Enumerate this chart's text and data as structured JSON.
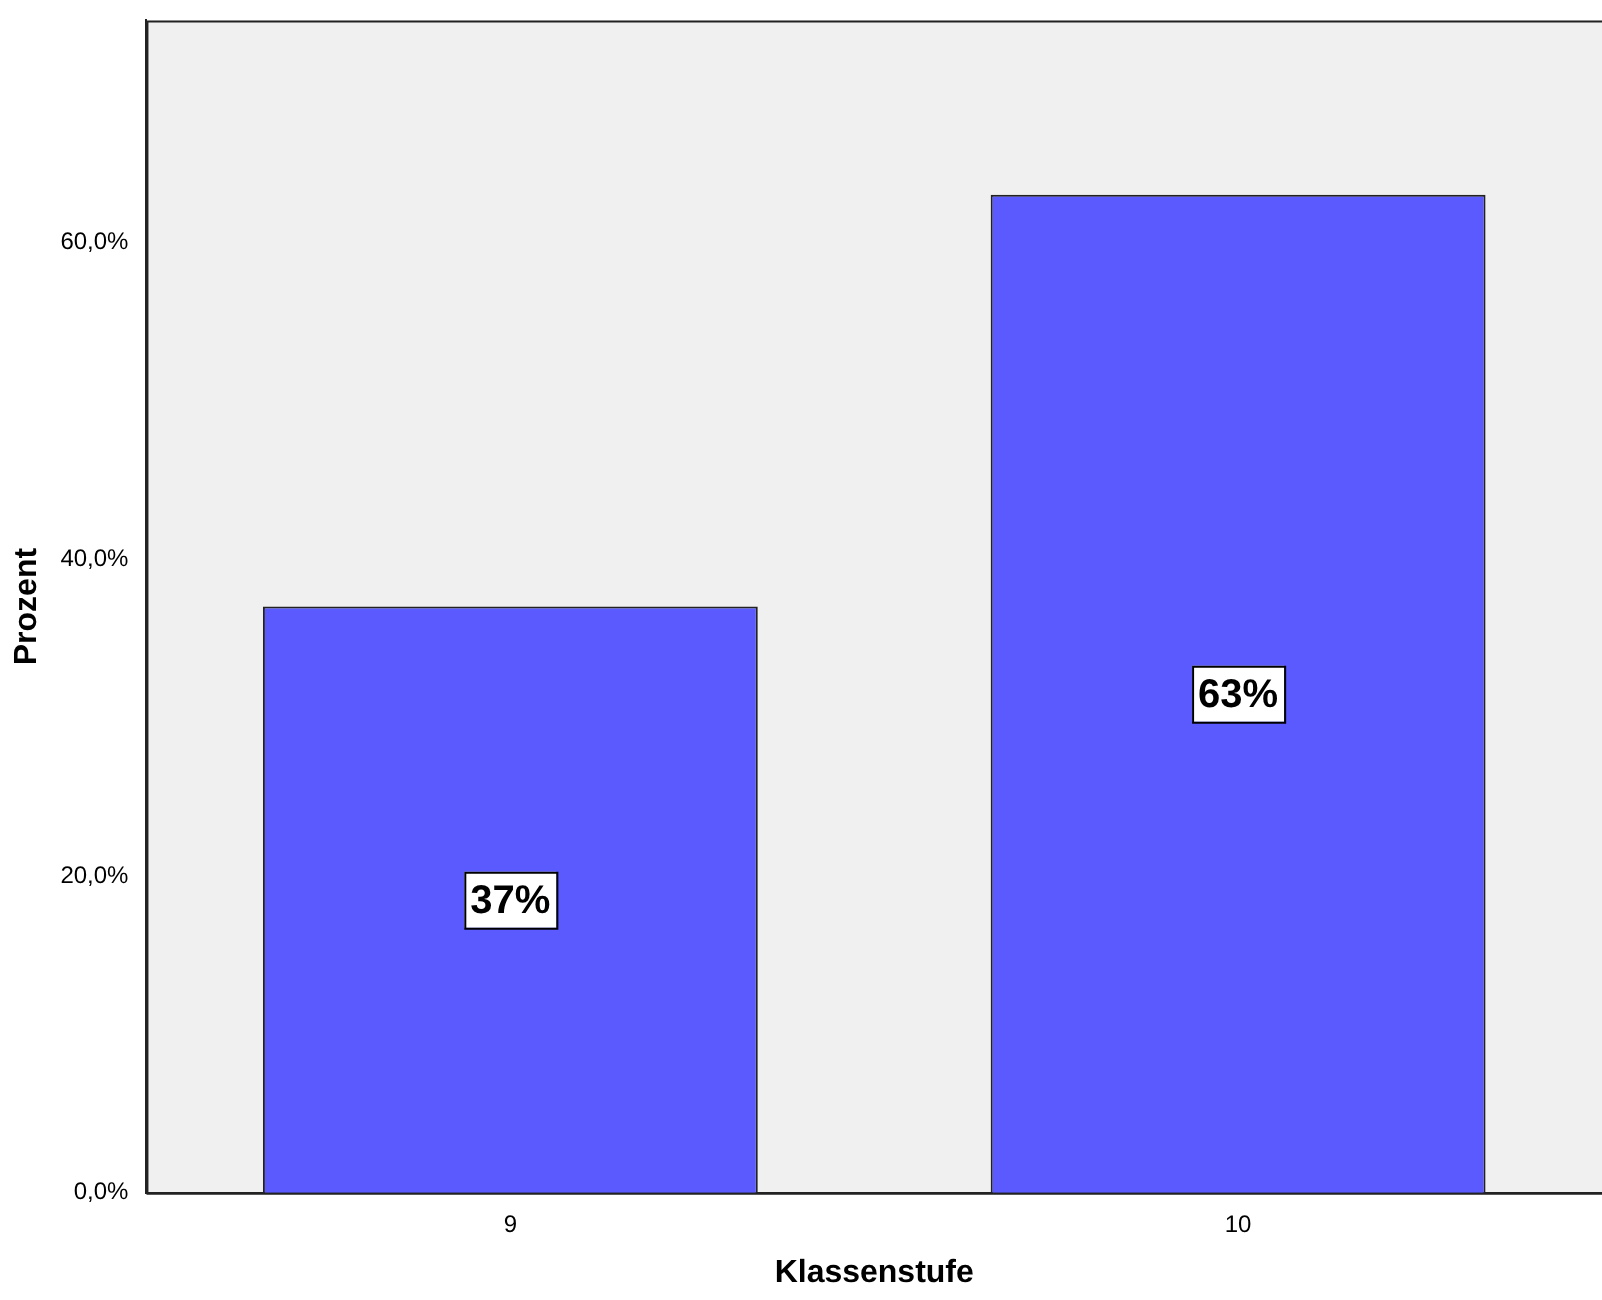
{
  "chart_data": {
    "type": "bar",
    "xlabel": "Klassenstufe",
    "ylabel": "Prozent",
    "categories": [
      "9",
      "10"
    ],
    "values": [
      37,
      63
    ],
    "value_labels": [
      "37%",
      "63%"
    ],
    "color": "#5a5aff",
    "ylim": [
      0,
      74
    ],
    "yticks": [
      {
        "value": 0,
        "label": "0,0%"
      },
      {
        "value": 20,
        "label": "20,0%"
      },
      {
        "value": 40,
        "label": "40,0%"
      },
      {
        "value": 60,
        "label": "60,0%"
      }
    ],
    "grid": false,
    "legend": false
  }
}
